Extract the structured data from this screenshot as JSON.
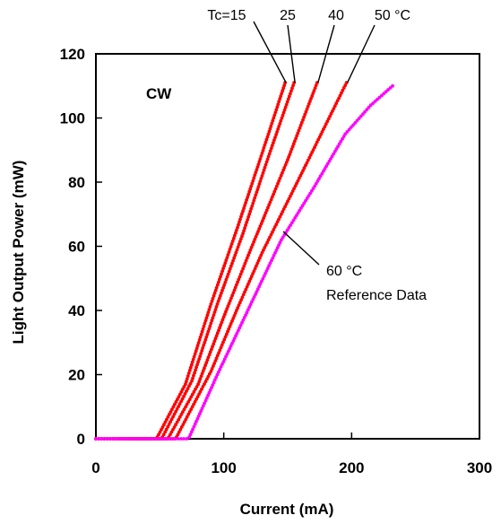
{
  "chart_data": {
    "type": "line",
    "xlabel": "Current (mA)",
    "ylabel": "Light Output Power (mW)",
    "xlim": [
      0,
      300
    ],
    "ylim": [
      0,
      120
    ],
    "x_ticks": [
      0,
      100,
      200,
      300
    ],
    "y_ticks": [
      0,
      20,
      40,
      60,
      80,
      100,
      120
    ],
    "grid": false,
    "legend": "none",
    "series": [
      {
        "name": "Tc=15",
        "color": "#ff0000",
        "marker": "dot",
        "x": [
          0,
          46,
          48,
          70,
          90,
          110,
          130,
          148
        ],
        "y": [
          0,
          0,
          0.5,
          17,
          42,
          65,
          89,
          111
        ]
      },
      {
        "name": "25",
        "color": "#ff0000",
        "marker": "dot",
        "x": [
          0,
          50,
          52,
          75,
          95,
          115,
          135,
          155
        ],
        "y": [
          0,
          0,
          0.5,
          18,
          42,
          64,
          88,
          111
        ]
      },
      {
        "name": "40",
        "color": "#ff0000",
        "marker": "dot",
        "x": [
          0,
          55,
          57,
          80,
          100,
          120,
          150,
          173
        ],
        "y": [
          0,
          0,
          0.5,
          17,
          38,
          58,
          87,
          111
        ]
      },
      {
        "name": "50 °C",
        "color": "#ff0000",
        "marker": "dot",
        "x": [
          0,
          61,
          63,
          90,
          110,
          130,
          160,
          196
        ],
        "y": [
          0,
          0,
          0.5,
          21,
          40,
          58,
          82,
          111
        ]
      },
      {
        "name": "60 °C Reference Data",
        "color": "#ff00ff",
        "marker": "dot",
        "x": [
          0,
          71,
          73,
          95,
          120,
          145,
          170,
          195,
          215,
          232
        ],
        "y": [
          0,
          0,
          0.5,
          20,
          41,
          62,
          78,
          95,
          104,
          110
        ]
      }
    ],
    "annotations": {
      "cw": "CW",
      "tc_label": "Tc=15",
      "t25": "25",
      "t40": "40",
      "t50": "50 °C",
      "ref_line1": "60 °C",
      "ref_line2": "Reference Data"
    }
  }
}
